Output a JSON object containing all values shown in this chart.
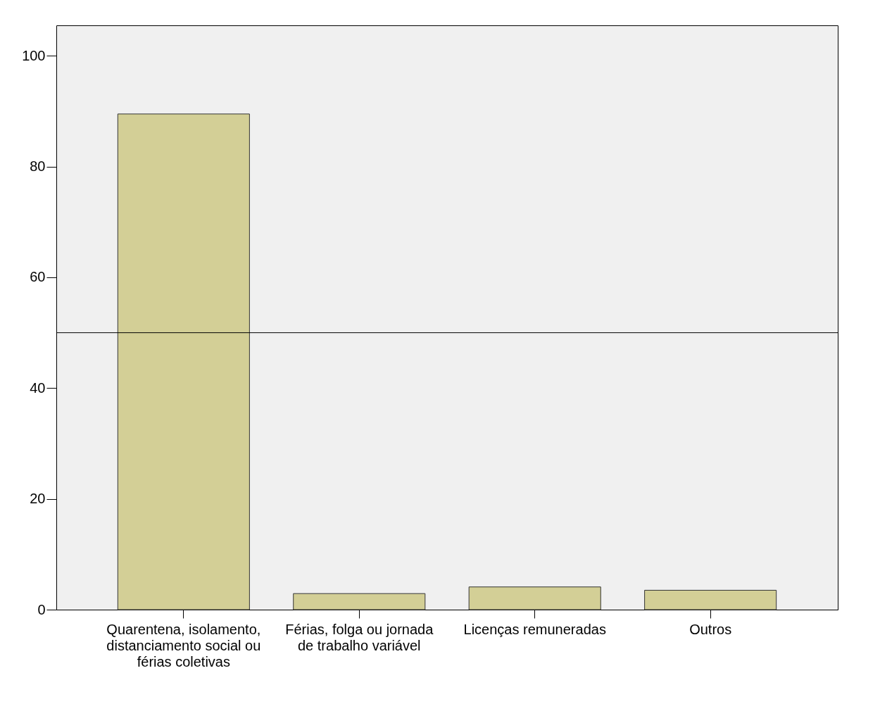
{
  "chart_data": {
    "type": "bar",
    "categories": [
      "Quarentena, isolamento, distanciamento social ou férias coletivas",
      "Férias, folga ou jornada de trabalho variável",
      "Licenças remuneradas",
      "Outros"
    ],
    "values": [
      89.5,
      2.9,
      4.1,
      3.5
    ],
    "color": "#d3cf96",
    "ylim": [
      0,
      105.5
    ],
    "yticks": [
      0,
      20,
      40,
      60,
      80,
      100
    ],
    "ref_lines": [
      {
        "axis": "y",
        "value": 50,
        "color": "#000000"
      }
    ],
    "grid": false
  }
}
